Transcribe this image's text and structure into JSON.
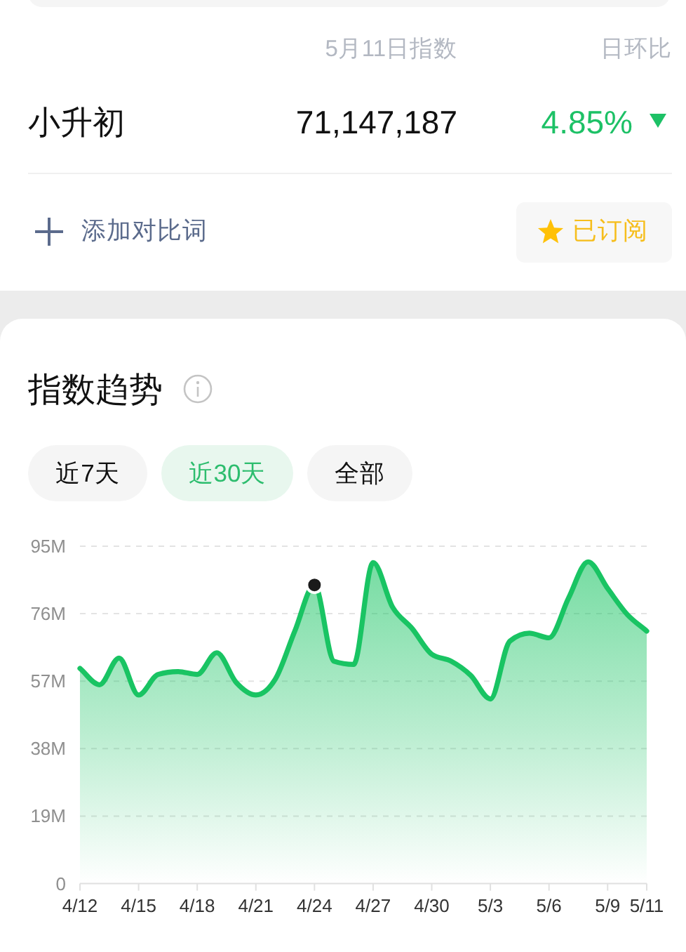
{
  "chart_data": {
    "type": "area",
    "title": "指数趋势",
    "annotations": [
      "5月11日指数",
      "日环比",
      "小升初",
      "71,147,187",
      "4.85%",
      "添加对比词",
      "已订阅",
      "近7天",
      "近30天",
      "全部"
    ],
    "categories": [
      "4/12",
      null,
      null,
      "4/15",
      null,
      null,
      "4/18",
      null,
      null,
      "4/21",
      null,
      null,
      "4/24",
      null,
      null,
      "4/27",
      null,
      null,
      "4/30",
      null,
      null,
      "5/3",
      null,
      null,
      "5/6",
      null,
      null,
      "5/9",
      null,
      "5/11"
    ],
    "series": [
      {
        "color": "#19c463",
        "values": [
          60.6,
          56.0,
          63.5,
          53.1,
          58.9,
          59.7,
          58.9,
          65.0,
          56.6,
          53.1,
          57.6,
          71.2,
          84.1,
          62.6,
          61.7,
          90.4,
          77.8,
          71.8,
          64.6,
          62.6,
          58.6,
          52.0,
          68.3,
          70.5,
          69.2,
          80.4,
          90.6,
          83.1,
          75.8,
          71.1
        ]
      },
      {
        "type": "scatter",
        "color": "#1a1a1a",
        "marker": "circle",
        "values": [
          null,
          null,
          null,
          null,
          null,
          null,
          null,
          null,
          null,
          null,
          null,
          null,
          84.1,
          null,
          null,
          null,
          null,
          null,
          null,
          null,
          null,
          null,
          null,
          null,
          null,
          null,
          null,
          null,
          null,
          null
        ]
      }
    ],
    "ylim": [
      0,
      95
    ],
    "yticks": [
      0,
      {
        "value": 19,
        "label": "19M"
      },
      {
        "value": 38,
        "label": "38M"
      },
      {
        "value": 57,
        "label": "57M"
      },
      {
        "value": 76,
        "label": "76M"
      },
      {
        "value": 95,
        "label": "95M"
      }
    ],
    "grid": "y",
    "marker": "none"
  }
}
